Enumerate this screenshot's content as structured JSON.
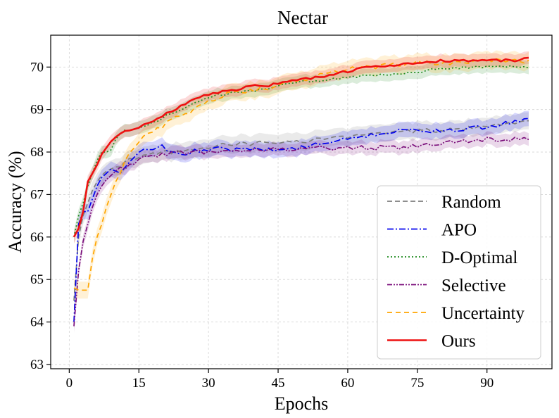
{
  "chart_data": {
    "type": "line",
    "title": "Nectar",
    "xlabel": "Epochs",
    "ylabel": "Accuracy (%)",
    "xlim": [
      -4,
      104
    ],
    "ylim": [
      62.9,
      70.75
    ],
    "xticks": [
      0,
      15,
      30,
      45,
      60,
      75,
      90
    ],
    "yticks": [
      63,
      64,
      65,
      66,
      67,
      68,
      69,
      70
    ],
    "grid": true,
    "legend_position": "lower-right",
    "series": [
      {
        "name": "Random",
        "color": "#7f7f7f",
        "dash": "7 4",
        "band": 0.2,
        "x": [
          1,
          2,
          3,
          4,
          5,
          6,
          7,
          8,
          9,
          10,
          11,
          12,
          13,
          15,
          17,
          20,
          23,
          26,
          30,
          35,
          40,
          45,
          50,
          55,
          60,
          65,
          70,
          75,
          80,
          85,
          90,
          95,
          99
        ],
        "y": [
          64.5,
          66.0,
          66.5,
          66.8,
          67.1,
          67.3,
          67.45,
          67.55,
          67.6,
          67.65,
          67.7,
          67.75,
          67.8,
          67.9,
          67.95,
          68.0,
          68.0,
          68.05,
          68.1,
          68.2,
          68.2,
          68.25,
          68.25,
          68.3,
          68.35,
          68.4,
          68.45,
          68.5,
          68.5,
          68.55,
          68.6,
          68.7,
          68.75
        ]
      },
      {
        "name": "APO",
        "color": "#0000ee",
        "dash": "9 3 2 3",
        "band": 0.18,
        "x": [
          1,
          2,
          3,
          4,
          5,
          6,
          7,
          8,
          9,
          10,
          11,
          12,
          14,
          16,
          18,
          20,
          22,
          24,
          26,
          28,
          30,
          32,
          35,
          40,
          45,
          48,
          50,
          55,
          60,
          65,
          70,
          75,
          80,
          85,
          90,
          95,
          99
        ],
        "y": [
          64.0,
          66.3,
          66.6,
          66.6,
          66.9,
          67.2,
          67.4,
          67.5,
          67.6,
          67.55,
          67.45,
          67.6,
          67.9,
          68.1,
          68.1,
          68.15,
          68.0,
          67.95,
          68.0,
          68.05,
          68.05,
          68.1,
          68.05,
          68.1,
          68.0,
          68.05,
          68.1,
          68.2,
          68.3,
          68.4,
          68.5,
          68.5,
          68.5,
          68.55,
          68.6,
          68.7,
          68.75
        ]
      },
      {
        "name": "D-Optimal",
        "color": "#1f8b1f",
        "dash": "2 3",
        "band": 0.15,
        "x": [
          1,
          2,
          3,
          4,
          5,
          6,
          7,
          8,
          9,
          10,
          11,
          12,
          14,
          16,
          18,
          20,
          23,
          26,
          30,
          33,
          36,
          40,
          45,
          50,
          55,
          60,
          65,
          70,
          75,
          80,
          85,
          90,
          95,
          99
        ],
        "y": [
          66.0,
          66.5,
          66.8,
          67.2,
          67.5,
          67.8,
          68.0,
          68.0,
          68.05,
          68.3,
          68.45,
          68.5,
          68.55,
          68.6,
          68.7,
          68.8,
          68.95,
          69.1,
          69.3,
          69.35,
          69.4,
          69.45,
          69.55,
          69.65,
          69.7,
          69.75,
          69.8,
          69.85,
          69.9,
          69.95,
          70.0,
          70.0,
          70.0,
          70.0
        ]
      },
      {
        "name": "Selective",
        "color": "#7b0f7b",
        "dash": "7 2 2 2 2 2",
        "band": 0.15,
        "x": [
          1,
          2,
          3,
          4,
          5,
          6,
          7,
          8,
          9,
          10,
          11,
          12,
          14,
          16,
          18,
          20,
          23,
          26,
          30,
          35,
          40,
          45,
          50,
          55,
          60,
          65,
          70,
          75,
          80,
          85,
          90,
          95,
          99
        ],
        "y": [
          63.9,
          65.2,
          65.9,
          66.3,
          66.7,
          67.0,
          67.2,
          67.35,
          67.45,
          67.55,
          67.6,
          67.65,
          67.75,
          67.85,
          67.9,
          67.95,
          68.0,
          68.0,
          68.0,
          68.05,
          68.05,
          68.05,
          68.1,
          68.1,
          68.1,
          68.1,
          68.1,
          68.15,
          68.2,
          68.25,
          68.3,
          68.3,
          68.3
        ]
      },
      {
        "name": "Uncertainty",
        "color": "#ffa500",
        "dash": "7 5",
        "band": 0.2,
        "x": [
          1,
          2,
          3,
          4,
          5,
          6,
          7,
          8,
          9,
          10,
          11,
          12,
          14,
          16,
          18,
          20,
          23,
          26,
          30,
          35,
          40,
          45,
          50,
          55,
          60,
          65,
          70,
          75,
          80,
          85,
          90,
          95,
          99
        ],
        "y": [
          64.8,
          64.75,
          64.75,
          64.75,
          65.5,
          66.0,
          66.3,
          66.7,
          67.0,
          67.3,
          67.5,
          67.8,
          68.1,
          68.35,
          68.5,
          68.6,
          68.8,
          68.95,
          69.2,
          69.4,
          69.45,
          69.55,
          69.7,
          69.85,
          69.95,
          70.0,
          70.05,
          70.1,
          70.1,
          70.1,
          70.15,
          70.15,
          70.15
        ]
      },
      {
        "name": "Ours",
        "color": "#ee1111",
        "dash": "",
        "band": 0.15,
        "x": [
          1,
          2,
          3,
          4,
          5,
          6,
          7,
          8,
          9,
          10,
          11,
          12,
          14,
          16,
          18,
          20,
          23,
          26,
          30,
          35,
          40,
          45,
          50,
          55,
          60,
          65,
          70,
          75,
          80,
          85,
          90,
          95,
          99
        ],
        "y": [
          66.0,
          66.2,
          66.6,
          67.3,
          67.5,
          67.7,
          67.95,
          68.1,
          68.25,
          68.35,
          68.45,
          68.5,
          68.55,
          68.65,
          68.75,
          68.85,
          69.0,
          69.2,
          69.35,
          69.45,
          69.55,
          69.6,
          69.7,
          69.8,
          69.9,
          70.0,
          70.05,
          70.1,
          70.15,
          70.15,
          70.15,
          70.15,
          70.2
        ]
      }
    ]
  }
}
